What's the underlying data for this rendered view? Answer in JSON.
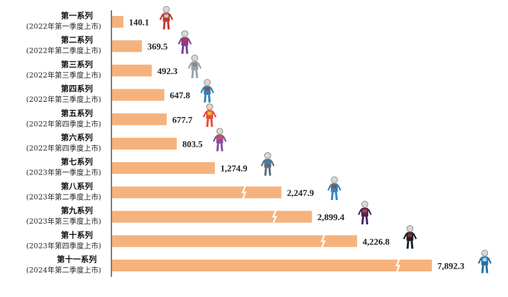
{
  "chart_data": {
    "type": "bar",
    "orientation": "horizontal",
    "categories": [
      {
        "name": "第一系列",
        "sub": "(2022年第一季度上市)"
      },
      {
        "name": "第二系列",
        "sub": "(2022年第二季度上市)"
      },
      {
        "name": "第三系列",
        "sub": "(2022年第三季度上市)"
      },
      {
        "name": "第四系列",
        "sub": "(2022年第三季度上市)"
      },
      {
        "name": "第五系列",
        "sub": "(2022年第四季度上市)"
      },
      {
        "name": "第六系列",
        "sub": "(2022年第四季度上市)"
      },
      {
        "name": "第七系列",
        "sub": "(2023年第一季度上市)"
      },
      {
        "name": "第八系列",
        "sub": "(2023年第二季度上市)"
      },
      {
        "name": "第九系列",
        "sub": "(2023年第三季度上市)"
      },
      {
        "name": "第十系列",
        "sub": "(2023年第四季度上市)"
      },
      {
        "name": "第十一系列",
        "sub": "(2024年第二季度上市)"
      }
    ],
    "values": [
      140.1,
      369.5,
      492.3,
      647.8,
      677.7,
      803.5,
      1274.9,
      2247.9,
      2899.4,
      4226.8,
      7892.3
    ],
    "value_labels": [
      "140.1",
      "369.5",
      "492.3",
      "647.8",
      "677.7",
      "803.5",
      "1,274.9",
      "2,247.9",
      "2,899.4",
      "4,226.8",
      "7,892.3"
    ],
    "axis_break": [
      false,
      false,
      false,
      false,
      false,
      false,
      false,
      true,
      true,
      true,
      true
    ],
    "title": "",
    "xlabel": "",
    "ylabel": "",
    "grid": false,
    "legend": "none",
    "colors": {
      "bar": "#f6b27c",
      "axis": "#222222",
      "break": "#ffffff"
    },
    "figure_icons": [
      "hero-figure-icon"
    ]
  }
}
